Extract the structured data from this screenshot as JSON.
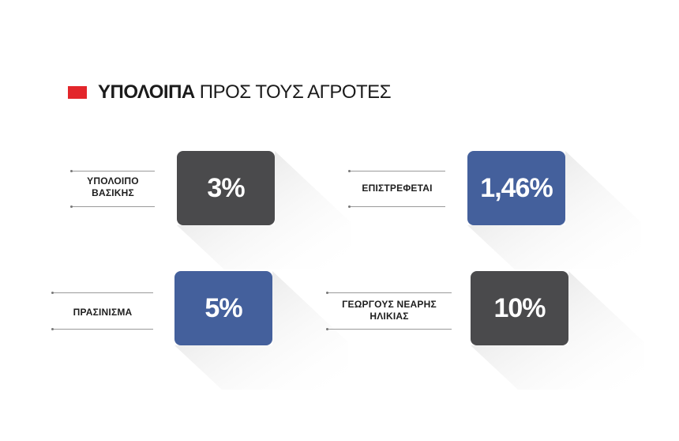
{
  "header": {
    "title_bold": "ΥΠΟΛΟΙΠΑ",
    "title_rest": "ΠΡΟΣ ΤΟΥΣ ΑΓΡΟΤΕΣ",
    "accent_color": "#e3262b"
  },
  "colors": {
    "dark": "#4a4a4c",
    "blue": "#44609c"
  },
  "items": [
    {
      "label_line1": "ΥΠΟΛΟΙΠΟ",
      "label_line2": "ΒΑΣΙΚΗΣ",
      "value": "3%",
      "color": "#4a4a4c"
    },
    {
      "label_line1": "ΕΠΙΣΤΡΕΦΕΤΑΙ",
      "label_line2": "",
      "value": "1,46%",
      "color": "#44609c"
    },
    {
      "label_line1": "ΠΡΑΣΙΝΙΣΜΑ",
      "label_line2": "",
      "value": "5%",
      "color": "#44609c"
    },
    {
      "label_line1": "ΓΕΩΡΓΟΥΣ ΝΕΑΡΗΣ",
      "label_line2": "ΗΛΙΚΙΑΣ",
      "value": "10%",
      "color": "#4a4a4c"
    }
  ]
}
